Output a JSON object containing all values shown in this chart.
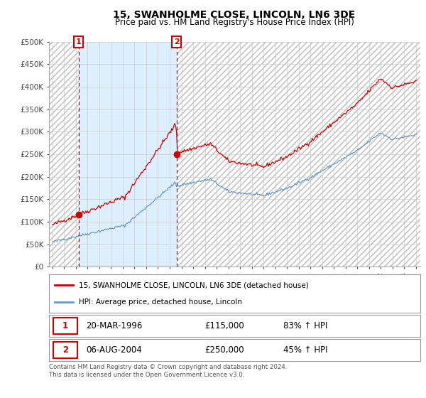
{
  "title": "15, SWANHOLME CLOSE, LINCOLN, LN6 3DE",
  "subtitle": "Price paid vs. HM Land Registry's House Price Index (HPI)",
  "title_fontsize": 10,
  "subtitle_fontsize": 8.5,
  "ylim": [
    0,
    500000
  ],
  "yticks": [
    0,
    50000,
    100000,
    150000,
    200000,
    250000,
    300000,
    350000,
    400000,
    450000,
    500000
  ],
  "xlim_start": 1993.7,
  "xlim_end": 2025.4,
  "sale1_year": 1996.22,
  "sale1_price": 115000,
  "sale2_year": 2004.59,
  "sale2_price": 250000,
  "legend_line1": "15, SWANHOLME CLOSE, LINCOLN, LN6 3DE (detached house)",
  "legend_line2": "HPI: Average price, detached house, Lincoln",
  "footer": "Contains HM Land Registry data © Crown copyright and database right 2024.\nThis data is licensed under the Open Government Licence v3.0.",
  "line_color_red": "#cc0000",
  "line_color_blue": "#6699cc",
  "hatch_color": "#bbbbbb",
  "grid_color": "#cccccc",
  "light_blue_fill": "#ddeeff",
  "background_color": "#ffffff"
}
